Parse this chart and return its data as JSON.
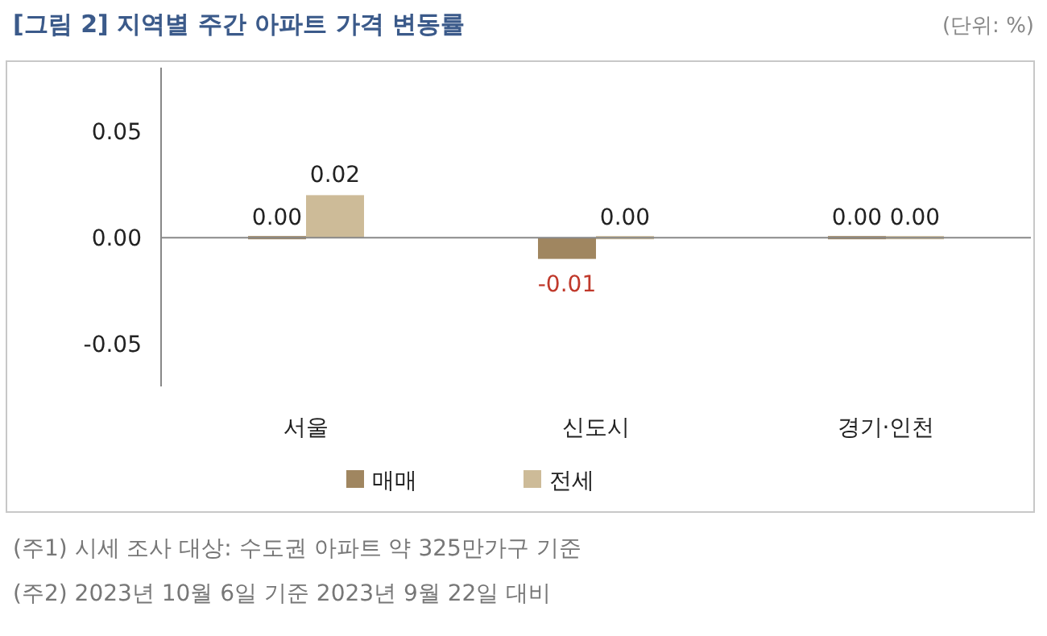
{
  "chart_data": {
    "type": "bar",
    "title": "[그림 2] 지역별 주간 아파트 가격 변동률",
    "categories": [
      "서울",
      "신도시",
      "경기·인천"
    ],
    "series": [
      {
        "name": "매매",
        "color": "#a08660",
        "values": [
          0.0,
          -0.01,
          0.0
        ],
        "value_labels": [
          "0.00",
          "-0.01",
          "0.00"
        ]
      },
      {
        "name": "전세",
        "color": "#cdbb98",
        "values": [
          0.02,
          0.0,
          0.0
        ],
        "value_labels": [
          "0.02",
          "0.00",
          "0.00"
        ]
      }
    ],
    "ylim": [
      -0.07,
      0.08
    ],
    "yticks": [
      {
        "value": -0.05,
        "label": "-0.05"
      },
      {
        "value": 0,
        "label": "0.00"
      },
      {
        "value": 0.05,
        "label": "0.05"
      }
    ],
    "legend": "bottom",
    "annotations": [
      "(단위: %)",
      "(주1) 시세 조사 대상: 수도권 아파트 약 325만가구 기준",
      "(주2) 2023년 10월 6일 기준 2023년 9월 22일 대비"
    ]
  }
}
